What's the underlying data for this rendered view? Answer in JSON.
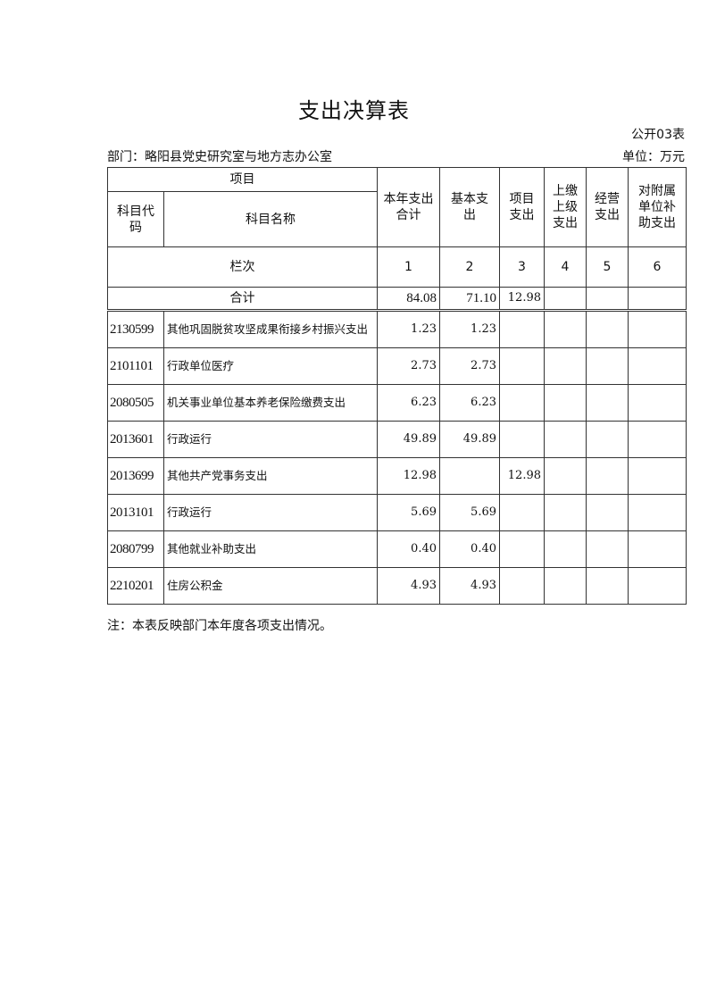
{
  "title": "支出决算表",
  "form_no": "公开03表",
  "department": "部门：略阳县党史研究室与地方志办公室",
  "unit": "单位：万元",
  "headers": {
    "item": "项目",
    "code": "科目代码",
    "name": "科目名称",
    "total": "本年支出合计",
    "basic": "基本支出",
    "project": "项目支出",
    "upper": "上缴上级支出",
    "business": "经营支出",
    "subsidy": "对附属单位补助支出",
    "column_index": "栏次",
    "col_numbers": [
      "1",
      "2",
      "3",
      "4",
      "5",
      "6"
    ]
  },
  "total_row": {
    "label": "合计",
    "total": "84.08",
    "basic": "71.10",
    "project": "12.98",
    "upper": "",
    "business": "",
    "subsidy": ""
  },
  "rows": [
    {
      "code": "2130599",
      "name": "其他巩固脱贫攻坚成果衔接乡村振兴支出",
      "total": "1.23",
      "basic": "1.23",
      "project": ""
    },
    {
      "code": "2101101",
      "name": "行政单位医疗",
      "total": "2.73",
      "basic": "2.73",
      "project": ""
    },
    {
      "code": "2080505",
      "name": "机关事业单位基本养老保险缴费支出",
      "total": "6.23",
      "basic": "6.23",
      "project": ""
    },
    {
      "code": "2013601",
      "name": "行政运行",
      "total": "49.89",
      "basic": "49.89",
      "project": ""
    },
    {
      "code": "2013699",
      "name": "其他共产党事务支出",
      "total": "12.98",
      "basic": "",
      "project": "12.98"
    },
    {
      "code": "2013101",
      "name": "行政运行",
      "total": "5.69",
      "basic": "5.69",
      "project": ""
    },
    {
      "code": "2080799",
      "name": "其他就业补助支出",
      "total": "0.40",
      "basic": "0.40",
      "project": ""
    },
    {
      "code": "2210201",
      "name": "住房公积金",
      "total": "4.93",
      "basic": "4.93",
      "project": ""
    }
  ],
  "note": "注：本表反映部门本年度各项支出情况。"
}
